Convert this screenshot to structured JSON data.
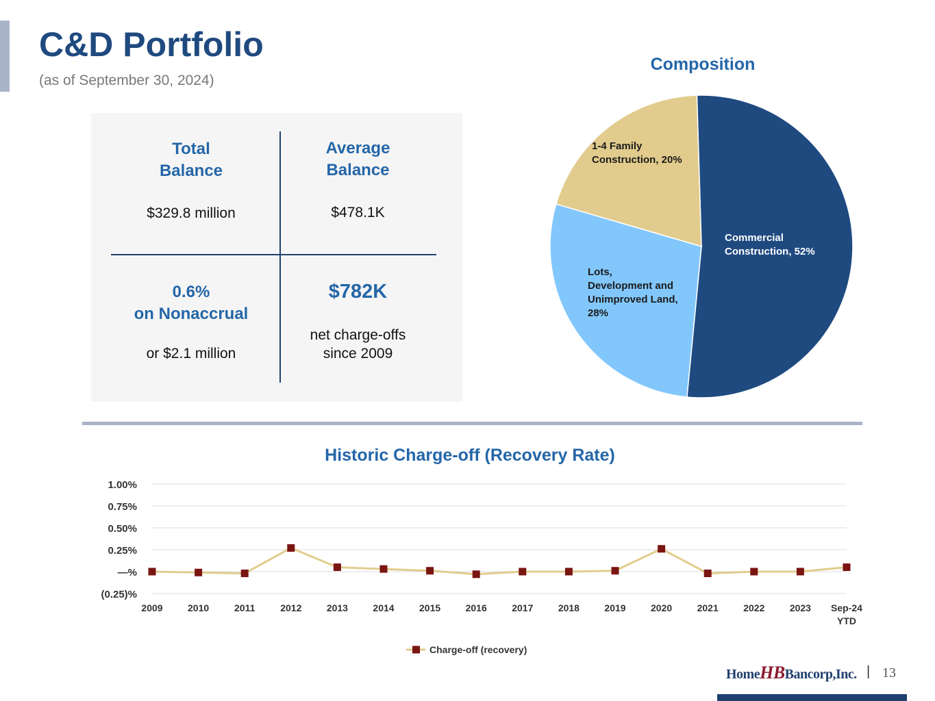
{
  "header": {
    "title": "C&D Portfolio",
    "subtitle": "(as of September 30, 2024)"
  },
  "stats": {
    "total_balance_head1": "Total",
    "total_balance_head2": "Balance",
    "total_balance_value": "$329.8 million",
    "average_balance_head1": "Average",
    "average_balance_head2": "Balance",
    "average_balance_value": "$478.1K",
    "nonaccrual_head1": "0.6%",
    "nonaccrual_head2": "on Nonaccrual",
    "nonaccrual_value": "or $2.1 million",
    "chargeoff_head": "$782K",
    "chargeoff_value1": "net charge-offs",
    "chargeoff_value2": "since 2009"
  },
  "chart_data": [
    {
      "type": "pie",
      "title": "Composition",
      "slices": [
        {
          "label": "Commercial Construction",
          "value": 52,
          "color": "#1f4a80",
          "label_line1": "Commercial",
          "label_line2": "Construction, 52%"
        },
        {
          "label": "Lots, Development and Unimproved Land",
          "value": 28,
          "color": "#82c7fc",
          "label_line1": "Lots,",
          "label_line2": "Development and",
          "label_line3": "Unimproved Land,",
          "label_line4": "28%"
        },
        {
          "label": "1-4 Family Construction",
          "value": 20,
          "color": "#e2cc8d",
          "label_line1": "1-4 Family",
          "label_line2": "Construction, 20%"
        }
      ]
    },
    {
      "type": "line",
      "title": "Historic Charge-off (Recovery Rate)",
      "categories": [
        "2009",
        "2010",
        "2011",
        "2012",
        "2013",
        "2014",
        "2015",
        "2016",
        "2017",
        "2018",
        "2019",
        "2020",
        "2021",
        "2022",
        "2023",
        "Sep-24"
      ],
      "category_sublabels": {
        "Sep-24": "YTD"
      },
      "series": [
        {
          "name": "Charge-off (recovery)",
          "values": [
            0.0,
            -0.01,
            -0.02,
            0.27,
            0.05,
            0.03,
            0.01,
            -0.03,
            0.0,
            0.0,
            0.01,
            0.26,
            -0.02,
            0.0,
            0.0,
            0.05
          ],
          "line_color": "#e2cc8d",
          "marker_color": "#7a1512"
        }
      ],
      "yticks": [
        "1.00%",
        "0.75%",
        "0.50%",
        "0.25%",
        "—%",
        "(0.25)%"
      ],
      "ytick_values": [
        1.0,
        0.75,
        0.5,
        0.25,
        0,
        -0.25
      ],
      "ylim": [
        -0.25,
        1.0
      ],
      "grid": true,
      "legend": "bottom-center"
    }
  ],
  "footer": {
    "logo_part1": "Home",
    "logo_mark": "HB",
    "logo_part2": "Bancorp,Inc.",
    "pipe": "|",
    "page_number": "13"
  }
}
